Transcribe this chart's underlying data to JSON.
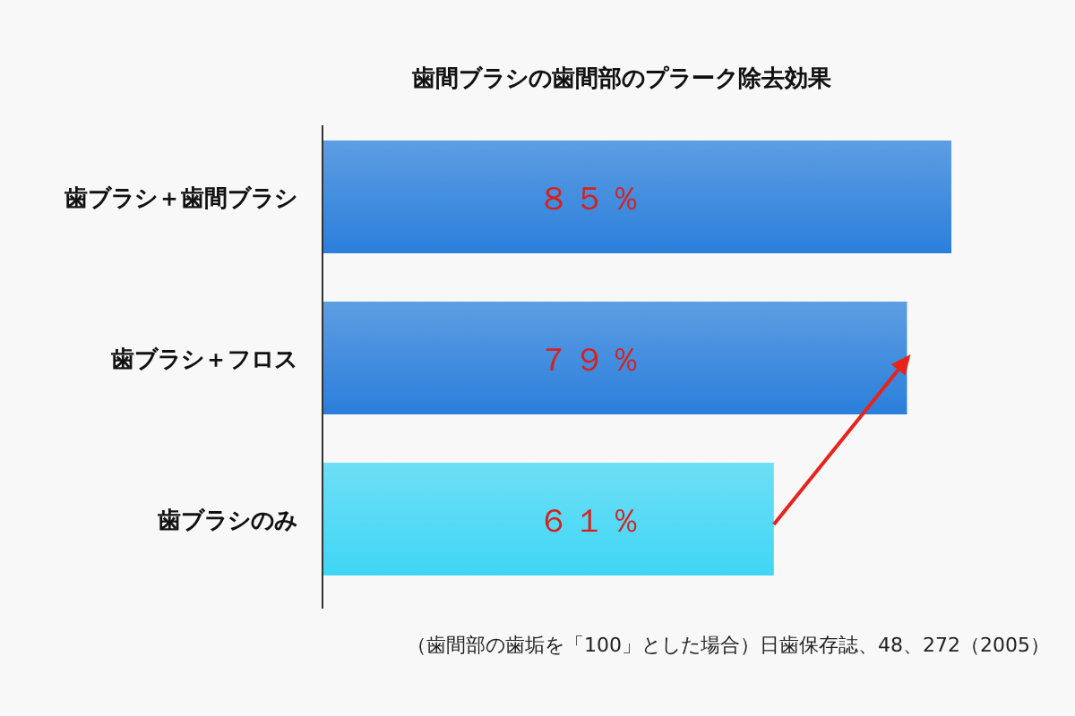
{
  "chart_data": {
    "type": "bar",
    "orientation": "horizontal",
    "title": "歯間ブラシの歯間部のプラーク除去効果",
    "categories": [
      "歯ブラシ＋歯間ブラシ",
      "歯ブラシ＋フロス",
      "歯ブラシのみ"
    ],
    "values": [
      85,
      79,
      61
    ],
    "colors": [
      "#2a7fdb",
      "#2a7fdb",
      "#3fd6f5"
    ],
    "value_labels": [
      "８５％",
      "７９％",
      "６１％"
    ],
    "annotations": [
      "（歯間部の歯垢を「100」とした場合）日歯保存誌、48、272（2005）"
    ]
  }
}
